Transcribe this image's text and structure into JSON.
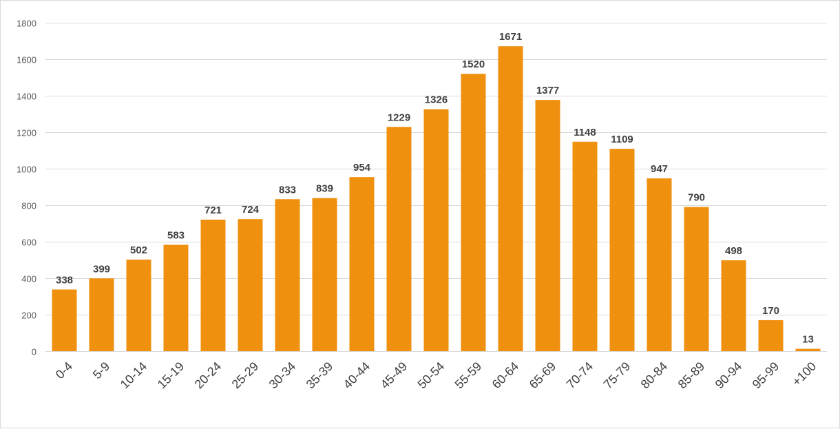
{
  "chart_data": {
    "type": "bar",
    "title": "",
    "xlabel": "",
    "ylabel": "",
    "categories": [
      "0-4",
      "5-9",
      "10-14",
      "15-19",
      "20-24",
      "25-29",
      "30-34",
      "35-39",
      "40-44",
      "45-49",
      "50-54",
      "55-59",
      "60-64",
      "65-69",
      "70-74",
      "75-79",
      "80-84",
      "85-89",
      "90-94",
      "95-99",
      "+100"
    ],
    "values": [
      338,
      399,
      502,
      583,
      721,
      724,
      833,
      839,
      954,
      1229,
      1326,
      1520,
      1671,
      1377,
      1148,
      1109,
      947,
      790,
      498,
      170,
      13
    ],
    "ylim": [
      0,
      1800
    ],
    "yticks": [
      0,
      200,
      400,
      600,
      800,
      1000,
      1200,
      1400,
      1600,
      1800
    ],
    "grid": true,
    "data_labels": true,
    "legend": "none",
    "bar_color": "#F0900F"
  }
}
